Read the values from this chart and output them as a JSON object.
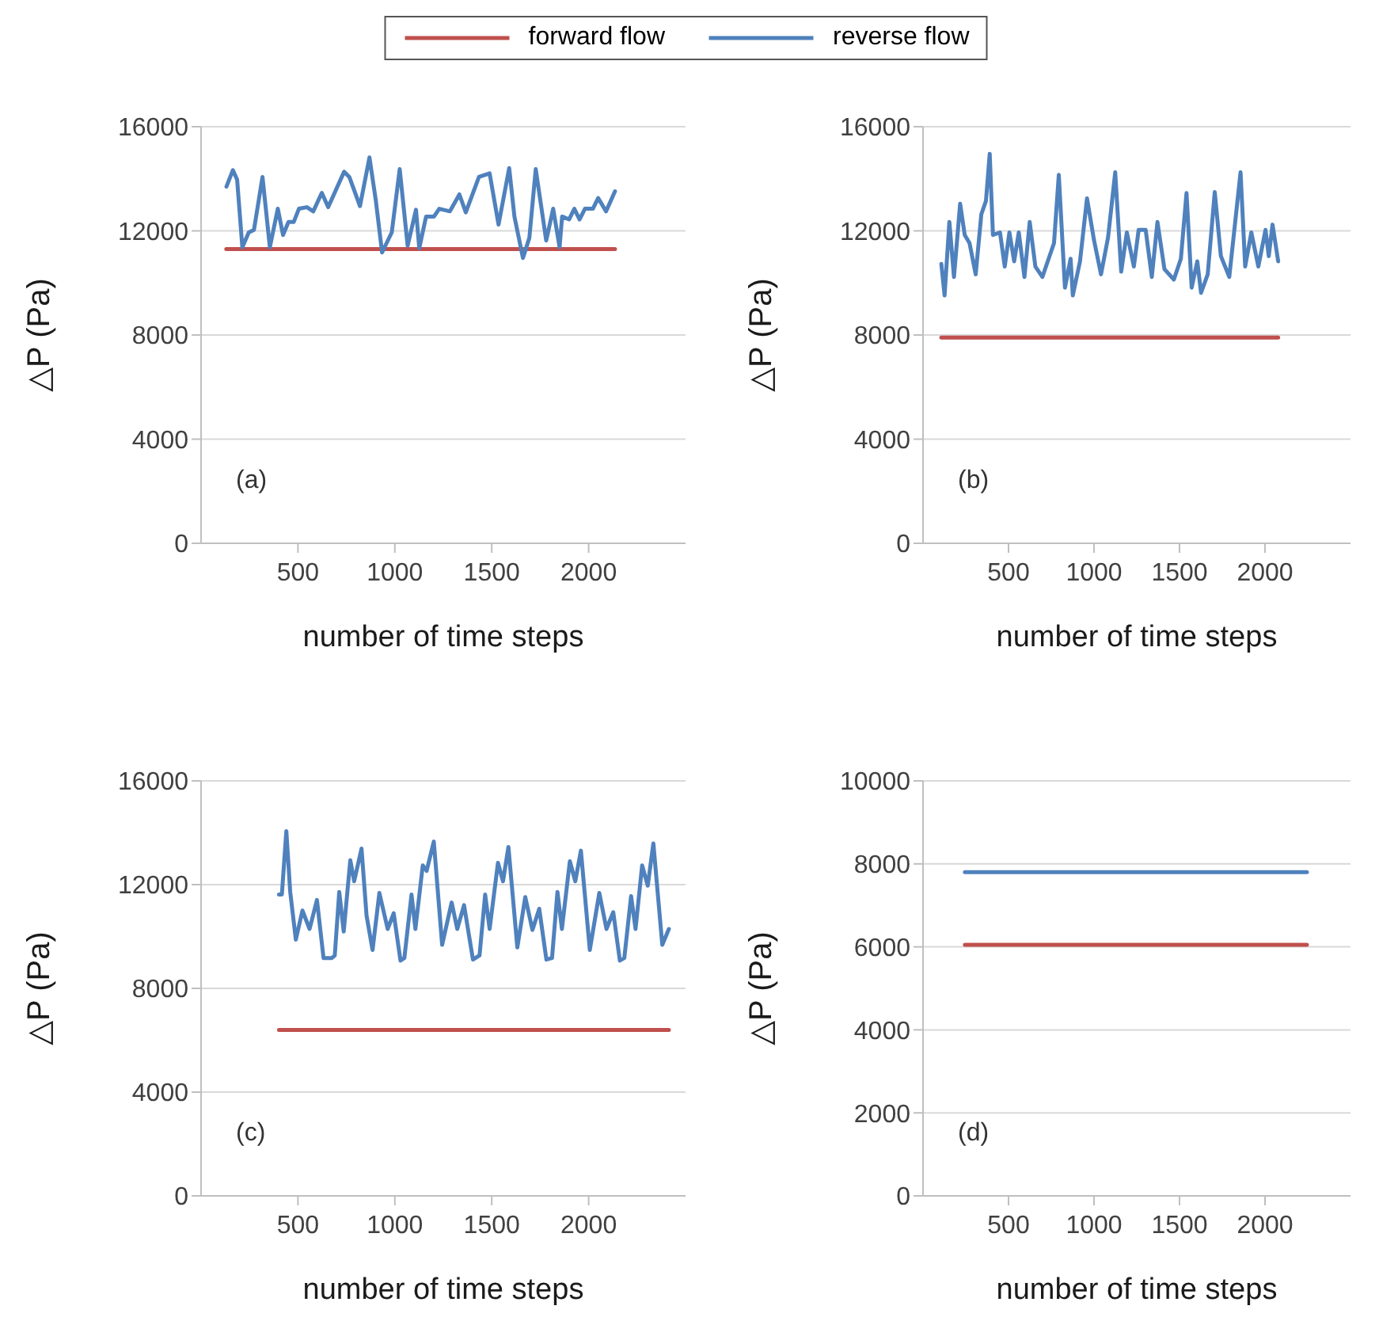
{
  "chart_data": [
    {
      "type": "line",
      "ylabel": "△P (Pa)",
      "xlabel": "number of time steps",
      "annotations": [
        "(a)"
      ],
      "xlim": [
        0,
        2500
      ],
      "xticks": [
        500,
        1000,
        1500,
        2000
      ],
      "ylim": [
        0,
        16000
      ],
      "yticks": [
        0,
        4000,
        8000,
        12000,
        16000
      ],
      "grid": "y",
      "legend": "top",
      "marker": "none",
      "line_style": "solid",
      "series": [
        {
          "name": "forward flow",
          "color": "#c0504d",
          "x": [
            130,
            2136
          ],
          "values": [
            11300,
            11300
          ]
        },
        {
          "name": "reverse flow",
          "color": "#4f81bd",
          "x": [
            131,
            164,
            186,
            213,
            246,
            273,
            317,
            355,
            396,
            423,
            451,
            478,
            505,
            546,
            579,
            623,
            656,
            738,
            765,
            820,
            869,
            902,
            934,
            984,
            1025,
            1066,
            1109,
            1126,
            1161,
            1202,
            1229,
            1284,
            1333,
            1366,
            1434,
            1489,
            1535,
            1590,
            1617,
            1661,
            1694,
            1727,
            1781,
            1817,
            1850,
            1863,
            1899,
            1926,
            1953,
            1981,
            2022,
            2049,
            2090,
            2136
          ],
          "values": [
            13700,
            14330,
            13970,
            11370,
            11940,
            12040,
            14070,
            11370,
            12850,
            11840,
            12340,
            12340,
            12850,
            12910,
            12750,
            13460,
            12910,
            14270,
            14070,
            12950,
            14820,
            13150,
            11170,
            11940,
            14370,
            11430,
            12810,
            11330,
            12550,
            12550,
            12850,
            12750,
            13400,
            12710,
            14070,
            14210,
            12240,
            14410,
            12550,
            10960,
            11730,
            14370,
            11630,
            12850,
            11370,
            12550,
            12440,
            12850,
            12440,
            12850,
            12850,
            13260,
            12750,
            13520
          ]
        }
      ]
    },
    {
      "type": "line",
      "ylabel": "△P (Pa)",
      "xlabel": "number of time steps",
      "annotations": [
        "(b)"
      ],
      "xlim": [
        0,
        2500
      ],
      "xticks": [
        500,
        1000,
        1500,
        2000
      ],
      "ylim": [
        0,
        16000
      ],
      "yticks": [
        0,
        4000,
        8000,
        12000,
        16000
      ],
      "grid": "y",
      "marker": "none",
      "line_style": "solid",
      "series": [
        {
          "color": "#c0504d",
          "x": [
            107,
            2077
          ],
          "values": [
            7900,
            7900
          ]
        },
        {
          "color": "#4f81bd",
          "x": [
            107,
            126,
            154,
            181,
            217,
            244,
            272,
            308,
            341,
            368,
            390,
            409,
            450,
            478,
            505,
            533,
            560,
            593,
            624,
            657,
            698,
            766,
            794,
            830,
            863,
            876,
            918,
            959,
            1000,
            1041,
            1082,
            1124,
            1159,
            1192,
            1233,
            1261,
            1302,
            1338,
            1371,
            1412,
            1467,
            1508,
            1541,
            1571,
            1604,
            1626,
            1665,
            1706,
            1742,
            1791,
            1857,
            1884,
            1920,
            1961,
            2003,
            2022,
            2044,
            2077
          ],
          "values": [
            10730,
            9520,
            12340,
            10230,
            13040,
            11840,
            11530,
            10330,
            12640,
            13150,
            14960,
            11840,
            11940,
            10630,
            11940,
            10830,
            11940,
            10230,
            12340,
            10630,
            10230,
            11530,
            14150,
            9820,
            10930,
            9520,
            10830,
            13250,
            11640,
            10330,
            11740,
            14250,
            10430,
            11940,
            10630,
            12040,
            12040,
            10230,
            12340,
            10530,
            10130,
            10930,
            13450,
            9820,
            10830,
            9620,
            10330,
            13490,
            11030,
            10230,
            14250,
            10630,
            11940,
            10630,
            12040,
            11030,
            12240,
            10830
          ]
        }
      ]
    },
    {
      "type": "line",
      "ylabel": "△P (Pa)",
      "xlabel": "number of time steps",
      "annotations": [
        "(c)"
      ],
      "xlim": [
        0,
        2500
      ],
      "xticks": [
        500,
        1000,
        1500,
        2000
      ],
      "ylim": [
        0,
        16000
      ],
      "yticks": [
        0,
        4000,
        8000,
        12000,
        16000
      ],
      "grid": "y",
      "marker": "none",
      "line_style": "solid",
      "series": [
        {
          "color": "#c0504d",
          "x": [
            402,
            2414
          ],
          "values": [
            6400,
            6400
          ]
        },
        {
          "color": "#4f81bd",
          "x": [
            402,
            417,
            440,
            460,
            489,
            523,
            560,
            598,
            632,
            675,
            690,
            713,
            736,
            770,
            790,
            828,
            854,
            885,
            920,
            963,
            994,
            1029,
            1049,
            1086,
            1106,
            1144,
            1164,
            1201,
            1244,
            1293,
            1322,
            1357,
            1403,
            1437,
            1466,
            1489,
            1532,
            1558,
            1586,
            1632,
            1673,
            1710,
            1745,
            1782,
            1811,
            1839,
            1862,
            1903,
            1931,
            1960,
            2006,
            2055,
            2092,
            2127,
            2161,
            2184,
            2219,
            2242,
            2276,
            2305,
            2334,
            2380,
            2414
          ],
          "values": [
            11620,
            11620,
            14060,
            11720,
            9880,
            11000,
            10290,
            11410,
            9170,
            9170,
            9270,
            11720,
            10190,
            12940,
            12130,
            13390,
            10800,
            9480,
            11680,
            10290,
            10900,
            9070,
            9170,
            11620,
            10290,
            12740,
            12530,
            13660,
            9680,
            11310,
            10290,
            11210,
            9110,
            9270,
            11620,
            10290,
            12840,
            12130,
            13450,
            9580,
            11520,
            10250,
            11070,
            9110,
            9170,
            11720,
            10290,
            12900,
            12130,
            13310,
            9480,
            11680,
            10290,
            10940,
            9070,
            9170,
            11560,
            10290,
            12740,
            11960,
            13590,
            9680,
            10290
          ]
        }
      ]
    },
    {
      "type": "line",
      "ylabel": "△P (Pa)",
      "xlabel": "number of time steps",
      "annotations": [
        "(d)"
      ],
      "xlim": [
        0,
        2500
      ],
      "xticks": [
        500,
        1000,
        1500,
        2000
      ],
      "ylim": [
        0,
        10000
      ],
      "yticks": [
        0,
        2000,
        4000,
        6000,
        8000,
        10000
      ],
      "grid": "y",
      "marker": "none",
      "line_style": "solid",
      "series": [
        {
          "color": "#c0504d",
          "x": [
            245,
            2245
          ],
          "values": [
            6050,
            6050
          ]
        },
        {
          "color": "#4f81bd",
          "x": [
            245,
            2245
          ],
          "values": [
            7800,
            7800
          ]
        }
      ]
    }
  ]
}
